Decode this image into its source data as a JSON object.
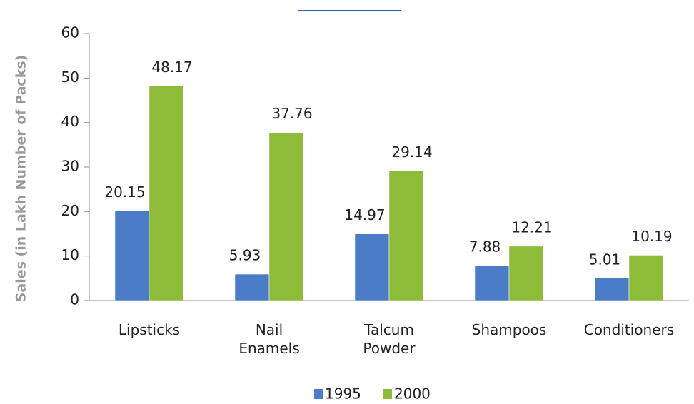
{
  "chart_data": {
    "type": "bar",
    "y_label": "Sales (in Lakh Number of Packs)",
    "categories": [
      "Lipsticks",
      "Nail Enamels",
      "Talcum Powder",
      "Shampoos",
      "Conditioners"
    ],
    "series": [
      {
        "name": "1995",
        "color": "#4a7cc7",
        "values": [
          20.15,
          5.93,
          14.97,
          7.88,
          5.01
        ]
      },
      {
        "name": "2000",
        "color": "#8ebb3a",
        "values": [
          48.17,
          37.76,
          29.14,
          12.21,
          10.19
        ]
      }
    ],
    "ylim": [
      0,
      60
    ],
    "yticks": [
      0,
      10,
      20,
      30,
      40,
      50,
      60
    ],
    "legend": "bottom"
  }
}
